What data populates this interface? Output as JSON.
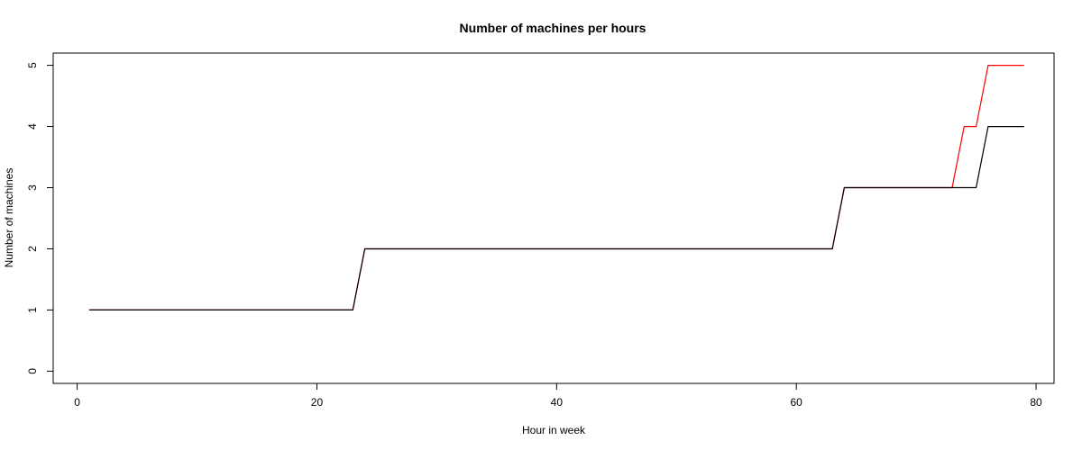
{
  "chart_data": {
    "type": "line",
    "title": "Number of machines per hours",
    "xlabel": "Hour in week",
    "ylabel": "Number of machines",
    "xlim": [
      -2,
      81.5
    ],
    "ylim": [
      -0.2,
      5.2
    ],
    "xticks": [
      0,
      20,
      40,
      60,
      80
    ],
    "yticks": [
      0,
      1,
      2,
      3,
      4,
      5
    ],
    "grid": false,
    "series": [
      {
        "color": "#ff0000",
        "x": [
          1,
          23,
          24,
          63,
          64,
          73,
          74,
          75,
          76,
          79
        ],
        "y": [
          1,
          1,
          2,
          2,
          3,
          3,
          4,
          4,
          5,
          5
        ]
      },
      {
        "color": "#000000",
        "x": [
          1,
          23,
          24,
          63,
          64,
          75,
          76,
          79
        ],
        "y": [
          1,
          1,
          2,
          2,
          3,
          3,
          4,
          4
        ]
      }
    ]
  }
}
